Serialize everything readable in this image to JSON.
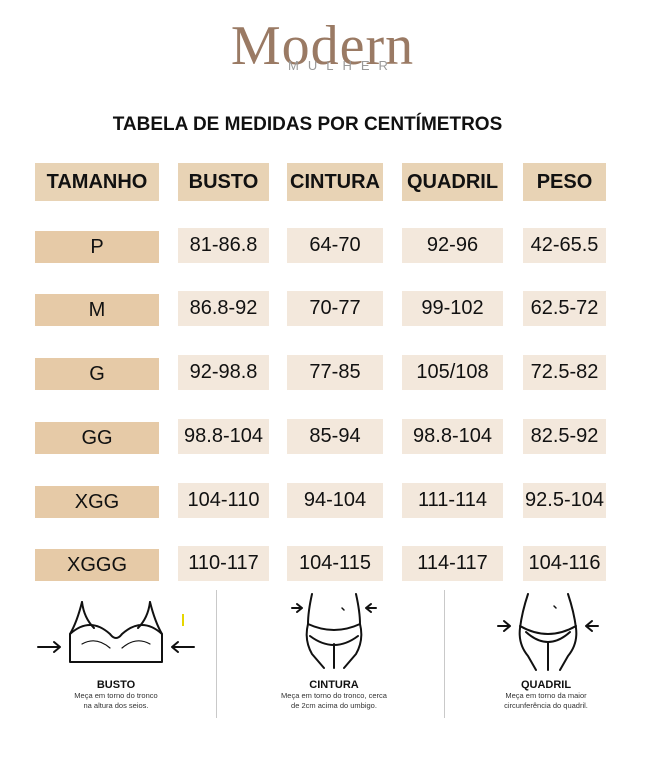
{
  "logo": {
    "brand": "Modern",
    "sub": "MULHER"
  },
  "title": "TABELA DE MEDIDAS POR CENTÍMETROS",
  "headers": [
    "TAMANHO",
    "BUSTO",
    "CINTURA",
    "QUADRIL",
    "PESO"
  ],
  "rows": [
    {
      "size": "P",
      "busto": "81-86.8",
      "cintura": "64-70",
      "quadril": "92-96",
      "peso": "42-65.5"
    },
    {
      "size": "M",
      "busto": "86.8-92",
      "cintura": "70-77",
      "quadril": "99-102",
      "peso": "62.5-72"
    },
    {
      "size": "G",
      "busto": "92-98.8",
      "cintura": "77-85",
      "quadril": "105/108",
      "peso": "72.5-82"
    },
    {
      "size": "GG",
      "busto": "98.8-104",
      "cintura": "85-94",
      "quadril": "98.8-104",
      "peso": "82.5-92"
    },
    {
      "size": "XGG",
      "busto": "104-110",
      "cintura": "94-104",
      "quadril": "111-114",
      "peso": "92.5-104"
    },
    {
      "size": "XGGG",
      "busto": "110-117",
      "cintura": "104-115",
      "quadril": "114-117",
      "peso": "104-116"
    }
  ],
  "guide": [
    {
      "title": "BUSTO",
      "desc1": "Meça em torno do tronco",
      "desc2": "na altura dos seios."
    },
    {
      "title": "CINTURA",
      "desc1": "Meça em torno do tronco, cerca",
      "desc2": "de 2cm acima do umbigo."
    },
    {
      "title": "QUADRIL",
      "desc1": "Meça em torno da maior",
      "desc2": "circunferência do quadril."
    }
  ],
  "colors": {
    "header": "#e8d3b5",
    "size": "#e6caa7",
    "value": "#f3e8dc",
    "logo": "#9a7a64"
  }
}
